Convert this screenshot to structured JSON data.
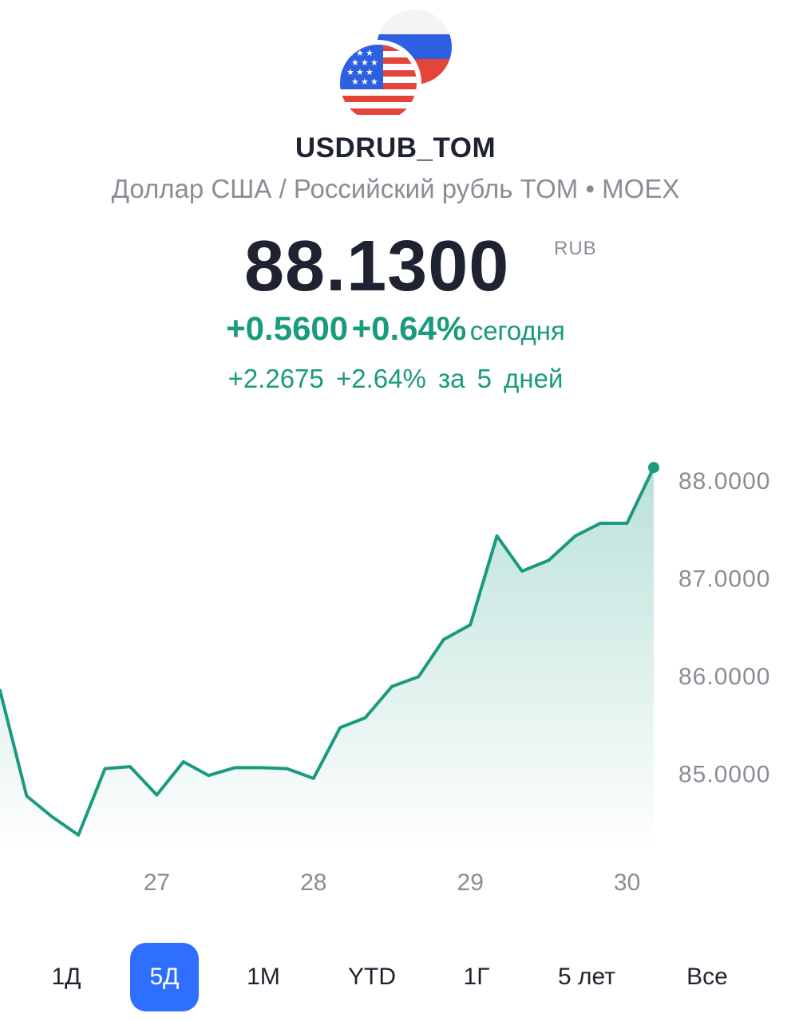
{
  "instrument": {
    "ticker": "USDRUB_TOM",
    "subtitle": "Доллар США / Российский рубль TOM • MOEX",
    "flags": [
      "us-flag-icon",
      "ru-flag-icon"
    ]
  },
  "quote": {
    "price": "88.1300",
    "currency": "RUB",
    "today_change_abs": "+0.5600",
    "today_change_pct": "+0.64%",
    "today_label": "сегодня",
    "five_day_change_abs": "+2.2675",
    "five_day_change_pct": "+2.64%",
    "five_day_label": "за 5 дней"
  },
  "colors": {
    "positive": "#1a9a7e",
    "accent": "#2f6fff",
    "text": "#1f2230",
    "muted": "#8a8d96"
  },
  "chart_data": {
    "type": "area",
    "y_tick_labels": [
      "88.0000",
      "87.0000",
      "86.0000",
      "85.0000"
    ],
    "y_ticks": [
      88,
      87,
      86,
      85
    ],
    "x_tick_labels": [
      "27",
      "28",
      "29",
      "30"
    ],
    "x_ticks": [
      27,
      28,
      29,
      30
    ],
    "xlim": [
      26.0,
      30.2
    ],
    "ylim": [
      84.1,
      88.4
    ],
    "grid": false,
    "series": [
      {
        "x": [
          26.0,
          26.17,
          26.33,
          26.5,
          26.67,
          26.83,
          27.0,
          27.17,
          27.33,
          27.5,
          27.67,
          27.83,
          28.0,
          28.17,
          28.33,
          28.5,
          28.67,
          28.83,
          29.0,
          29.17,
          29.33,
          29.5,
          29.67,
          29.83,
          30.0,
          30.17
        ],
        "y": [
          85.85,
          84.77,
          84.56,
          84.37,
          85.05,
          85.07,
          84.78,
          85.12,
          84.98,
          85.06,
          85.06,
          85.05,
          84.95,
          85.47,
          85.57,
          85.89,
          85.99,
          86.37,
          86.52,
          87.43,
          87.07,
          87.18,
          87.43,
          87.56,
          87.56,
          88.13
        ]
      }
    ]
  },
  "periods": [
    {
      "label": "1Д",
      "active": false
    },
    {
      "label": "5Д",
      "active": true
    },
    {
      "label": "1М",
      "active": false
    },
    {
      "label": "YTD",
      "active": false
    },
    {
      "label": "1Г",
      "active": false
    },
    {
      "label": "5 лет",
      "active": false
    },
    {
      "label": "Все",
      "active": false
    }
  ]
}
